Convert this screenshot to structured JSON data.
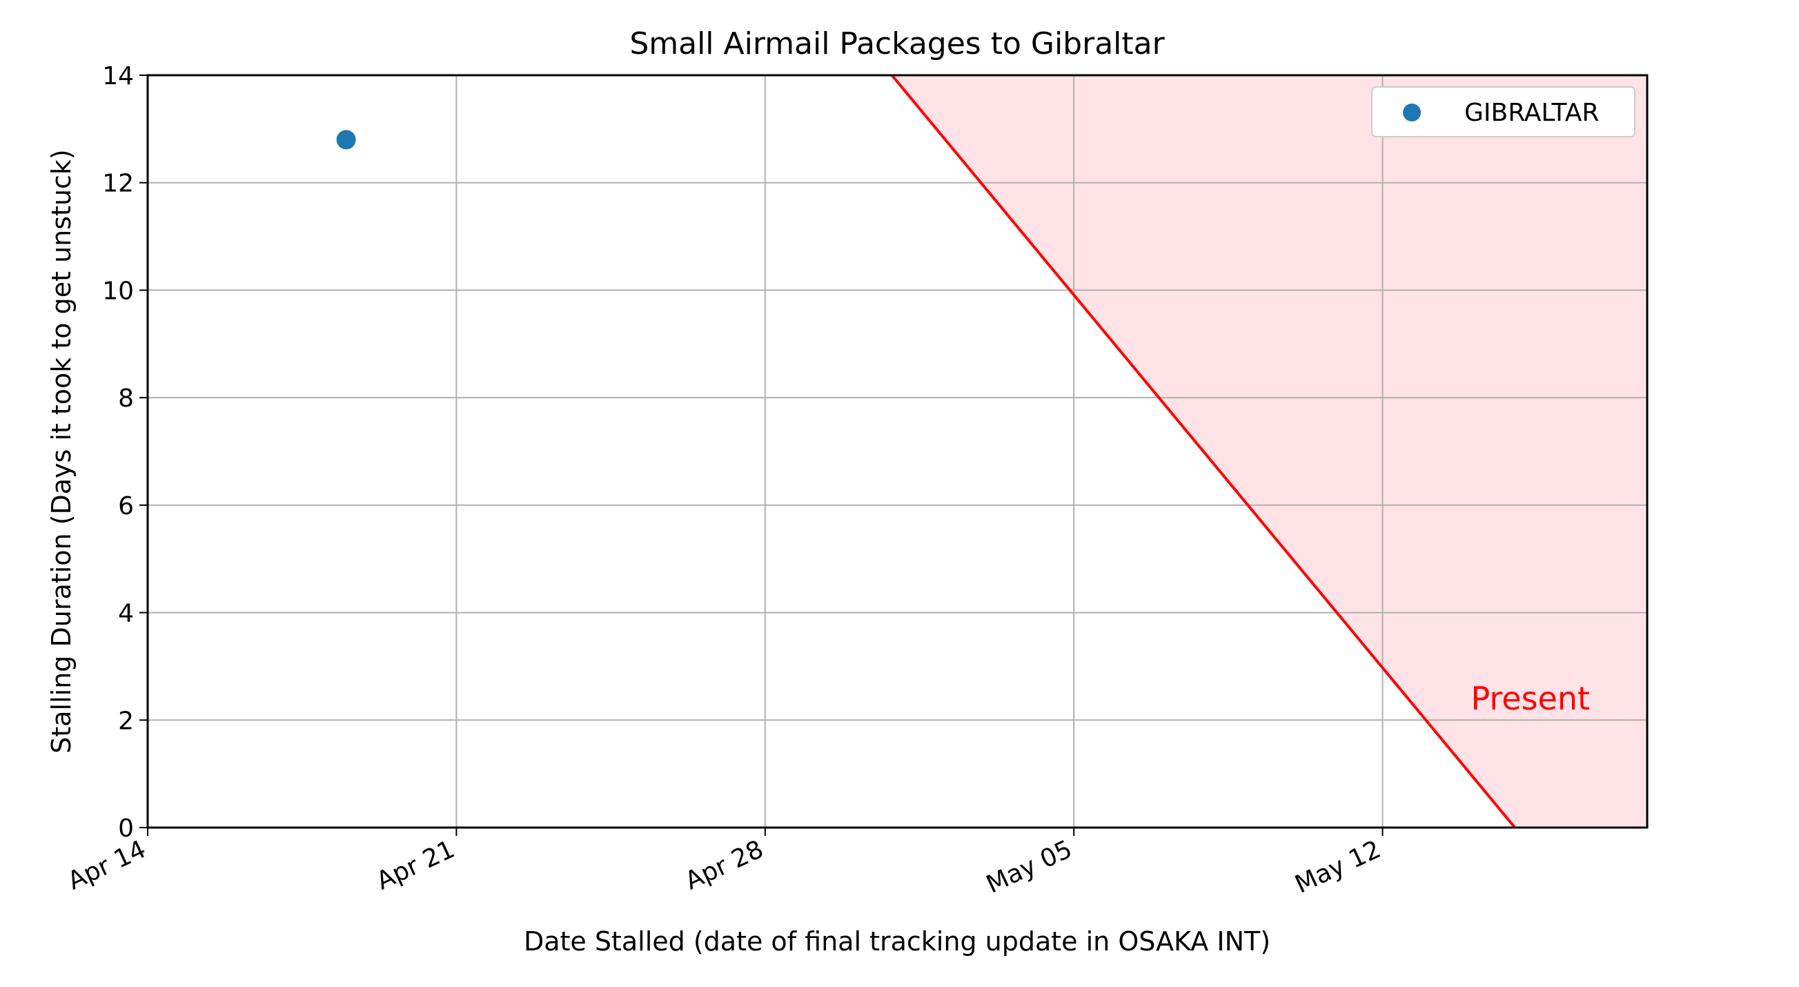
{
  "chart_data": {
    "type": "scatter",
    "title": "Small Airmail Packages to Gibraltar",
    "xlabel": "Date Stalled (date of final tracking update in OSAKA INT)",
    "ylabel": "Stalling Duration (Days it took to get unstuck)",
    "x_ticks": [
      "Apr 14",
      "Apr 21",
      "Apr 28",
      "May 05",
      "May 12"
    ],
    "y_ticks": [
      "0",
      "2",
      "4",
      "6",
      "8",
      "10",
      "12",
      "14"
    ],
    "xlim": [
      "2024-04-14",
      "2024-05-18"
    ],
    "ylim": [
      0,
      14
    ],
    "grid": true,
    "legend_position": "top-right",
    "series": [
      {
        "name": "GIBRALTAR",
        "color": "#1f77b4",
        "points": [
          {
            "x": "2024-04-18 12:00",
            "y": 12.8
          }
        ]
      }
    ],
    "present_line": {
      "color": "#ff0000",
      "fill_color": "#ffe3e6",
      "from": {
        "x": "2024-04-30 21:00",
        "y": 14
      },
      "to": {
        "x": "2024-05-15 00:00",
        "y": 0
      }
    },
    "annotations": [
      {
        "text": "Present",
        "x": "2024-05-13",
        "y": 2.4,
        "color": "#ff0000"
      }
    ]
  }
}
